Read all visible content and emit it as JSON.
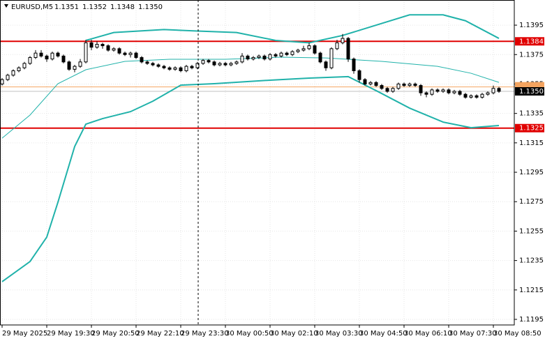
{
  "chart_data": {
    "type": "candlestick",
    "title": "EURUSD,M5",
    "header_ohlc": [
      1.1351,
      1.1352,
      1.1348,
      {
        "value": 1.135,
        "label": "1.1350"
      }
    ],
    "ylim": [
      1.11912,
      1.14121
    ],
    "yticks": [
      1.1395,
      1.1375,
      1.1355,
      1.1335,
      1.1315,
      1.1295,
      1.1275,
      1.1255,
      1.1235,
      1.1215,
      1.1195
    ],
    "xlim": [
      -0.75,
      183.5
    ],
    "xticks": [
      {
        "value": 0,
        "label": "29 May 2025"
      },
      {
        "value": 16,
        "label": "29 May 19:30"
      },
      {
        "value": 32,
        "label": "29 May 20:50"
      },
      {
        "value": 48,
        "label": "29 May 22:10"
      },
      {
        "value": 64,
        "label": "29 May 23:30"
      },
      {
        "value": 80,
        "label": "30 May 00:50"
      },
      {
        "value": 96,
        "label": "30 May 02:10"
      },
      {
        "value": 112,
        "label": "30 May 03:30"
      },
      {
        "value": 128,
        "label": "30 May 04:50"
      },
      {
        "value": 144,
        "label": "30 May 06:10"
      },
      {
        "value": 160,
        "label": "30 May 07:30"
      },
      {
        "value": 176,
        "label": "30 May 08:50"
      }
    ],
    "grid": true,
    "x": [
      0,
      2,
      4,
      6,
      8,
      10,
      12,
      14,
      16,
      18,
      20,
      22,
      24,
      26,
      28,
      30,
      32,
      34,
      36,
      38,
      40,
      42,
      44,
      46,
      48,
      50,
      52,
      54,
      56,
      58,
      60,
      62,
      64,
      66,
      68,
      70,
      72,
      74,
      76,
      78,
      80,
      82,
      84,
      86,
      88,
      90,
      92,
      94,
      96,
      98,
      100,
      102,
      104,
      106,
      108,
      110,
      112,
      114,
      116,
      118,
      120,
      122,
      124,
      126,
      128,
      130,
      132,
      134,
      136,
      138,
      140,
      142,
      144,
      146,
      148,
      150,
      152,
      154,
      156,
      158,
      160,
      162,
      164,
      166,
      168,
      170,
      172,
      174,
      176,
      178
    ],
    "candles": [
      [
        1.1355,
        1.1359,
        1.1354,
        1.1358
      ],
      [
        1.1358,
        1.1362,
        1.1357,
        1.1361
      ],
      [
        1.1361,
        1.1365,
        1.136,
        1.1364
      ],
      [
        1.1364,
        1.1367,
        1.1363,
        1.1366
      ],
      [
        1.1366,
        1.137,
        1.1365,
        1.1369
      ],
      [
        1.1369,
        1.1374,
        1.1368,
        1.1373
      ],
      [
        1.1373,
        1.1378,
        1.1372,
        1.1376
      ],
      [
        1.1376,
        1.1378,
        1.1373,
        1.1374
      ],
      [
        1.1374,
        1.1375,
        1.137,
        1.1372
      ],
      [
        1.1372,
        1.1377,
        1.1371,
        1.1376
      ],
      [
        1.1376,
        1.1377,
        1.1373,
        1.1374
      ],
      [
        1.1374,
        1.1375,
        1.1369,
        1.137
      ],
      [
        1.137,
        1.1371,
        1.1364,
        1.1365
      ],
      [
        1.1365,
        1.1368,
        1.1363,
        1.1367
      ],
      [
        1.1367,
        1.1372,
        1.1366,
        1.137
      ],
      [
        1.137,
        1.1385,
        1.1369,
        1.1383
      ],
      [
        1.1383,
        1.1385,
        1.1378,
        1.138
      ],
      [
        1.138,
        1.1384,
        1.1379,
        1.1382
      ],
      [
        1.1382,
        1.1383,
        1.1379,
        1.1381
      ],
      [
        1.1381,
        1.1382,
        1.1377,
        1.1378
      ],
      [
        1.1378,
        1.138,
        1.1377,
        1.1379
      ],
      [
        1.1379,
        1.138,
        1.1375,
        1.1376
      ],
      [
        1.1376,
        1.1377,
        1.1374,
        1.1375
      ],
      [
        1.1375,
        1.1377,
        1.1373,
        1.1376
      ],
      [
        1.1376,
        1.1377,
        1.1372,
        1.1373
      ],
      [
        1.1373,
        1.1374,
        1.1369,
        1.137
      ],
      [
        1.137,
        1.1371,
        1.1368,
        1.1369
      ],
      [
        1.1369,
        1.137,
        1.1367,
        1.1368
      ],
      [
        1.1368,
        1.1369,
        1.1366,
        1.1367
      ],
      [
        1.1367,
        1.1368,
        1.1365,
        1.1366
      ],
      [
        1.1366,
        1.1367,
        1.1364,
        1.1365
      ],
      [
        1.1365,
        1.1367,
        1.1364,
        1.1366
      ],
      [
        1.1366,
        1.1367,
        1.1363,
        1.1364
      ],
      [
        1.1364,
        1.1368,
        1.1363,
        1.1367
      ],
      [
        1.1367,
        1.1368,
        1.1365,
        1.1366
      ],
      [
        1.1366,
        1.137,
        1.1365,
        1.1369
      ],
      [
        1.1369,
        1.1372,
        1.1368,
        1.1371
      ],
      [
        1.1371,
        1.1372,
        1.1369,
        1.137
      ],
      [
        1.137,
        1.1371,
        1.1367,
        1.1368
      ],
      [
        1.1368,
        1.137,
        1.1367,
        1.1369
      ],
      [
        1.1369,
        1.137,
        1.1367,
        1.1368
      ],
      [
        1.1368,
        1.137,
        1.1367,
        1.1369
      ],
      [
        1.1369,
        1.1371,
        1.1368,
        1.137
      ],
      [
        1.137,
        1.1376,
        1.1369,
        1.1374
      ],
      [
        1.1374,
        1.1375,
        1.1371,
        1.1372
      ],
      [
        1.1372,
        1.1374,
        1.1371,
        1.1373
      ],
      [
        1.1373,
        1.1375,
        1.1372,
        1.1374
      ],
      [
        1.1374,
        1.1375,
        1.1371,
        1.1372
      ],
      [
        1.1372,
        1.1376,
        1.1371,
        1.1375
      ],
      [
        1.1375,
        1.1376,
        1.1373,
        1.1374
      ],
      [
        1.1374,
        1.1377,
        1.1373,
        1.1376
      ],
      [
        1.1376,
        1.1377,
        1.1374,
        1.1375
      ],
      [
        1.1375,
        1.1378,
        1.1374,
        1.1377
      ],
      [
        1.1377,
        1.1379,
        1.1376,
        1.1378
      ],
      [
        1.1378,
        1.1381,
        1.1377,
        1.1379
      ],
      [
        1.1379,
        1.1383,
        1.1378,
        1.1381
      ],
      [
        1.1381,
        1.1382,
        1.1375,
        1.1376
      ],
      [
        1.1376,
        1.1377,
        1.1369,
        1.137
      ],
      [
        1.137,
        1.1371,
        1.1364,
        1.1366
      ],
      [
        1.1366,
        1.138,
        1.1365,
        1.1379
      ],
      [
        1.1379,
        1.1385,
        1.1378,
        1.1383
      ],
      [
        1.1383,
        1.1389,
        1.1382,
        1.1386
      ],
      [
        1.1386,
        1.1387,
        1.137,
        1.1372
      ],
      [
        1.1372,
        1.1373,
        1.1362,
        1.1364
      ],
      [
        1.1364,
        1.1365,
        1.1356,
        1.1358
      ],
      [
        1.1358,
        1.1359,
        1.1354,
        1.1355
      ],
      [
        1.1355,
        1.1357,
        1.1354,
        1.1356
      ],
      [
        1.1356,
        1.1357,
        1.1353,
        1.1354
      ],
      [
        1.1354,
        1.1355,
        1.1351,
        1.1352
      ],
      [
        1.1352,
        1.1353,
        1.1349,
        1.135
      ],
      [
        1.135,
        1.1353,
        1.1349,
        1.1352
      ],
      [
        1.1352,
        1.1356,
        1.1351,
        1.1355
      ],
      [
        1.1355,
        1.1356,
        1.1353,
        1.1354
      ],
      [
        1.1354,
        1.1356,
        1.1353,
        1.1355
      ],
      [
        1.1355,
        1.1356,
        1.1353,
        1.1354
      ],
      [
        1.1354,
        1.1355,
        1.1347,
        1.1349
      ],
      [
        1.1349,
        1.135,
        1.1346,
        1.1348
      ],
      [
        1.1348,
        1.1352,
        1.1347,
        1.1351
      ],
      [
        1.1351,
        1.1352,
        1.1349,
        1.135
      ],
      [
        1.135,
        1.1352,
        1.1349,
        1.1351
      ],
      [
        1.1351,
        1.1352,
        1.1348,
        1.1349
      ],
      [
        1.1349,
        1.1351,
        1.1348,
        1.135
      ],
      [
        1.135,
        1.1351,
        1.1347,
        1.1348
      ],
      [
        1.1348,
        1.1349,
        1.1345,
        1.1346
      ],
      [
        1.1346,
        1.1348,
        1.1345,
        1.1347
      ],
      [
        1.1347,
        1.1348,
        1.1345,
        1.1346
      ],
      [
        1.1346,
        1.1349,
        1.1345,
        1.1348
      ],
      [
        1.1348,
        1.135,
        1.1347,
        1.1349
      ],
      [
        1.1349,
        1.1354,
        1.1348,
        1.1352
      ],
      [
        1.1352,
        1.1353,
        1.1349,
        1.135
      ]
    ],
    "series": [
      {
        "color": "#20b2aa",
        "x": [
          30,
          40,
          58,
          70,
          84,
          98,
          110,
          122,
          134,
          146,
          158,
          166,
          178
        ],
        "values": [
          1.13846,
          1.139,
          1.1392,
          1.1391,
          1.139,
          1.13846,
          1.1383,
          1.1388,
          1.1395,
          1.1402,
          1.1402,
          1.1398,
          1.1386
        ],
        "width": 2
      },
      {
        "color": "#20b2aa",
        "x": [
          0,
          10,
          20,
          30,
          44,
          60,
          80,
          100,
          116,
          124,
          136,
          156,
          168,
          178
        ],
        "values": [
          1.13182,
          1.13339,
          1.13552,
          1.13647,
          1.13704,
          1.13718,
          1.13718,
          1.13732,
          1.13727,
          1.13718,
          1.13704,
          1.1367,
          1.13623,
          1.13561
        ],
        "width": 1
      },
      {
        "color": "#20b2aa",
        "x": [
          0,
          10,
          16,
          20,
          26,
          30,
          36,
          46,
          54,
          64,
          76,
          96,
          110,
          124,
          134,
          146,
          158,
          168,
          178
        ],
        "values": [
          1.12206,
          1.12343,
          1.12509,
          1.12746,
          1.13125,
          1.13277,
          1.13315,
          1.13362,
          1.13433,
          1.13542,
          1.13552,
          1.13576,
          1.1359,
          1.136,
          1.13505,
          1.13386,
          1.13291,
          1.13253,
          1.13268
        ],
        "width": 2
      }
    ],
    "levels": [
      {
        "value": 1.1384,
        "color": "#e00000"
      },
      {
        "value": 1.1325,
        "color": "#e00000"
      }
    ],
    "orange_level": 1.1353,
    "bid": {
      "value": 1.135,
      "label": "1.1350"
    }
  }
}
